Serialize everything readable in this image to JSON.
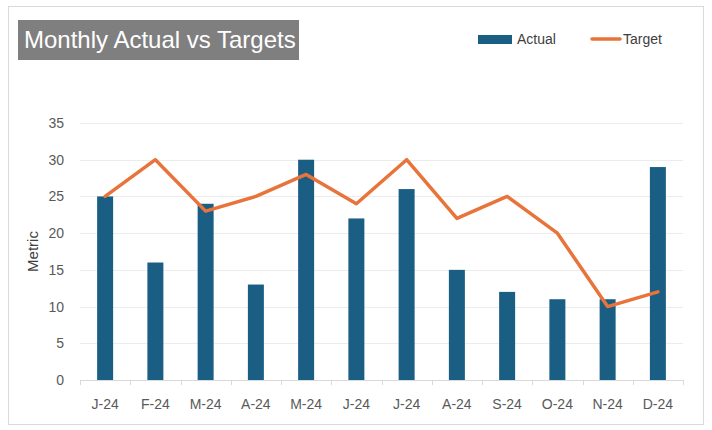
{
  "chart_data": {
    "type": "bar",
    "title": "Monthly Actual vs Targets",
    "y_label": "Metric",
    "categories": [
      "J-24",
      "F-24",
      "M-24",
      "A-24",
      "M-24",
      "J-24",
      "J-24",
      "A-24",
      "S-24",
      "O-24",
      "N-24",
      "D-24"
    ],
    "series": [
      {
        "name": "Actual",
        "type": "bar",
        "color": "#1a5e84",
        "values": [
          25,
          16,
          24,
          13,
          30,
          22,
          26,
          15,
          12,
          11,
          11,
          29
        ]
      },
      {
        "name": "Target",
        "type": "line",
        "color": "#e8743b",
        "values": [
          25,
          30,
          23,
          25,
          28,
          24,
          30,
          22,
          25,
          20,
          10,
          12
        ]
      }
    ],
    "ylim": [
      0,
      35
    ],
    "yticks": [
      0,
      5,
      10,
      15,
      20,
      25,
      30,
      35
    ],
    "grid": true,
    "legend": "top-right"
  }
}
